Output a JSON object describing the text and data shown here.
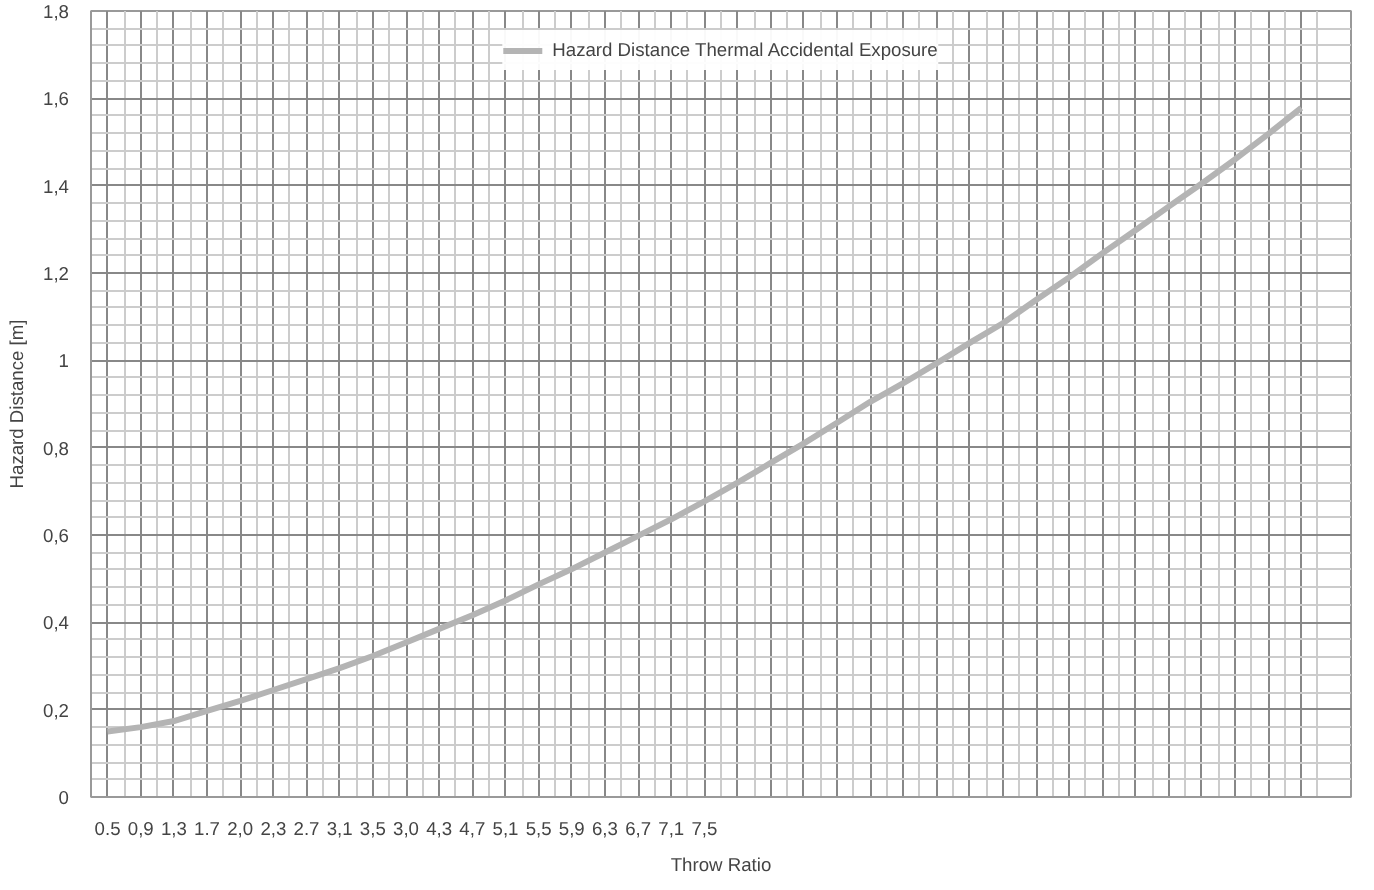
{
  "chart_data": {
    "type": "line",
    "xlabel": "Throw Ratio",
    "ylabel": "Hazard Distance [m]",
    "categories": [
      "0.5",
      "0,9",
      "1,3",
      "1.7",
      "2,0",
      "2,3",
      "2.7",
      "3,1",
      "3,5",
      "3,0",
      "4,3",
      "4,7",
      "5,1",
      "5,5",
      "5,9",
      "6,3",
      "6,7",
      "7,1",
      "7,5",
      null,
      null,
      null,
      null,
      null,
      null,
      null,
      null,
      null,
      null,
      null,
      null,
      null,
      null,
      null,
      null,
      null,
      null
    ],
    "series": [
      {
        "name": "Hazard Distance Thermal Accidental Exposure",
        "color": "#b4b4b4",
        "values": [
          0.15,
          0.16,
          0.174,
          0.197,
          0.22,
          0.245,
          0.27,
          0.295,
          0.323,
          0.354,
          0.385,
          0.416,
          0.45,
          0.487,
          0.522,
          0.56,
          0.598,
          0.636,
          0.677,
          0.72,
          0.765,
          0.81,
          0.857,
          0.905,
          0.948,
          0.993,
          1.04,
          1.085,
          1.138,
          1.19,
          1.245,
          1.298,
          1.352,
          1.405,
          1.46,
          1.518,
          1.578
        ]
      }
    ],
    "ylim": [
      0,
      1.8
    ],
    "yticks": [
      0,
      {
        "value": 0.2,
        "label": "0,2"
      },
      {
        "value": 0.4,
        "label": "0,4"
      },
      {
        "value": 0.6,
        "label": "0,6"
      },
      {
        "value": 0.8,
        "label": "0,8"
      },
      1,
      {
        "value": 1.2,
        "label": "1,2"
      },
      {
        "value": 1.4,
        "label": "1,4"
      },
      {
        "value": 1.6,
        "label": "1,6"
      },
      {
        "value": 1.8,
        "label": "1,8"
      }
    ],
    "grid": true,
    "legend": "top",
    "marker": "none",
    "line_style": "solid"
  }
}
